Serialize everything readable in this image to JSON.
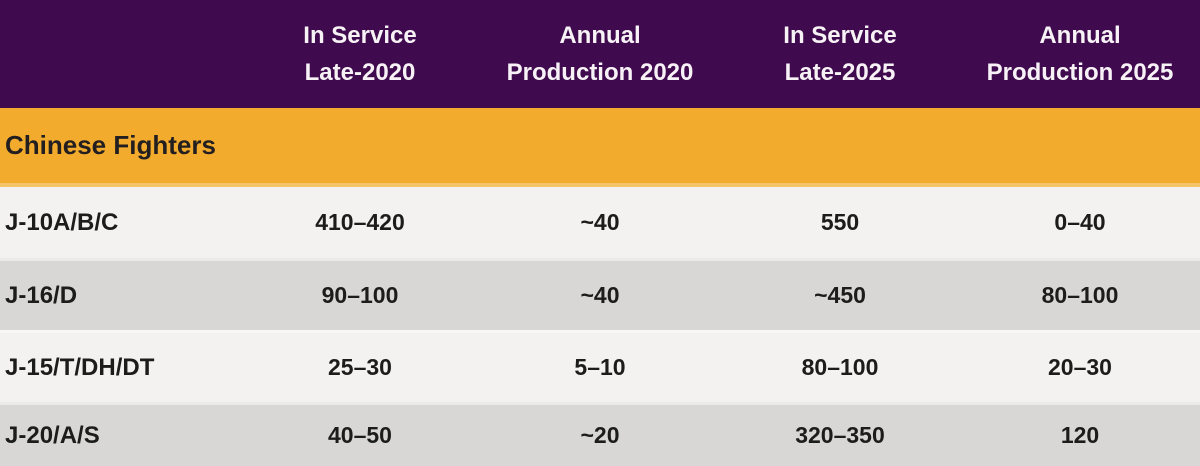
{
  "colors": {
    "header_background": "#400a4e",
    "header_text": "#f7f2f6",
    "section_background": "#f2ab2d",
    "section_border": "#f6c468",
    "row_light": "#f3f2f0",
    "row_dark": "#d8d7d5",
    "body_text": "#1c1c1a"
  },
  "header": {
    "columns": [
      {
        "line1": "In Service",
        "line2": "Late-2020"
      },
      {
        "line1": "Annual",
        "line2": "Production 2020"
      },
      {
        "line1": "In Service",
        "line2": "Late-2025"
      },
      {
        "line1": "Annual",
        "line2": "Production 2025"
      }
    ]
  },
  "section": {
    "title": "Chinese Fighters"
  },
  "rows": [
    {
      "label": "J-10A/B/C",
      "values": [
        "410–420",
        "~40",
        "550",
        "0–40"
      ]
    },
    {
      "label": "J-16/D",
      "values": [
        "90–100",
        "~40",
        "~450",
        "80–100"
      ]
    },
    {
      "label": "J-15/T/DH/DT",
      "values": [
        "25–30",
        "5–10",
        "80–100",
        "20–30"
      ]
    },
    {
      "label": "J-20/A/S",
      "values": [
        "40–50",
        "~20",
        "320–350",
        "120"
      ]
    }
  ],
  "chart_data": {
    "type": "table",
    "section": "Chinese Fighters",
    "columns": [
      "",
      "In Service Late-2020",
      "Annual Production 2020",
      "In Service Late-2025",
      "Annual Production 2025"
    ],
    "rows": [
      [
        "J-10A/B/C",
        "410–420",
        "~40",
        "550",
        "0–40"
      ],
      [
        "J-16/D",
        "90–100",
        "~40",
        "~450",
        "80–100"
      ],
      [
        "J-15/T/DH/DT",
        "25–30",
        "5–10",
        "80–100",
        "20–30"
      ],
      [
        "J-20/A/S",
        "40–50",
        "~20",
        "320–350",
        "120"
      ]
    ]
  }
}
